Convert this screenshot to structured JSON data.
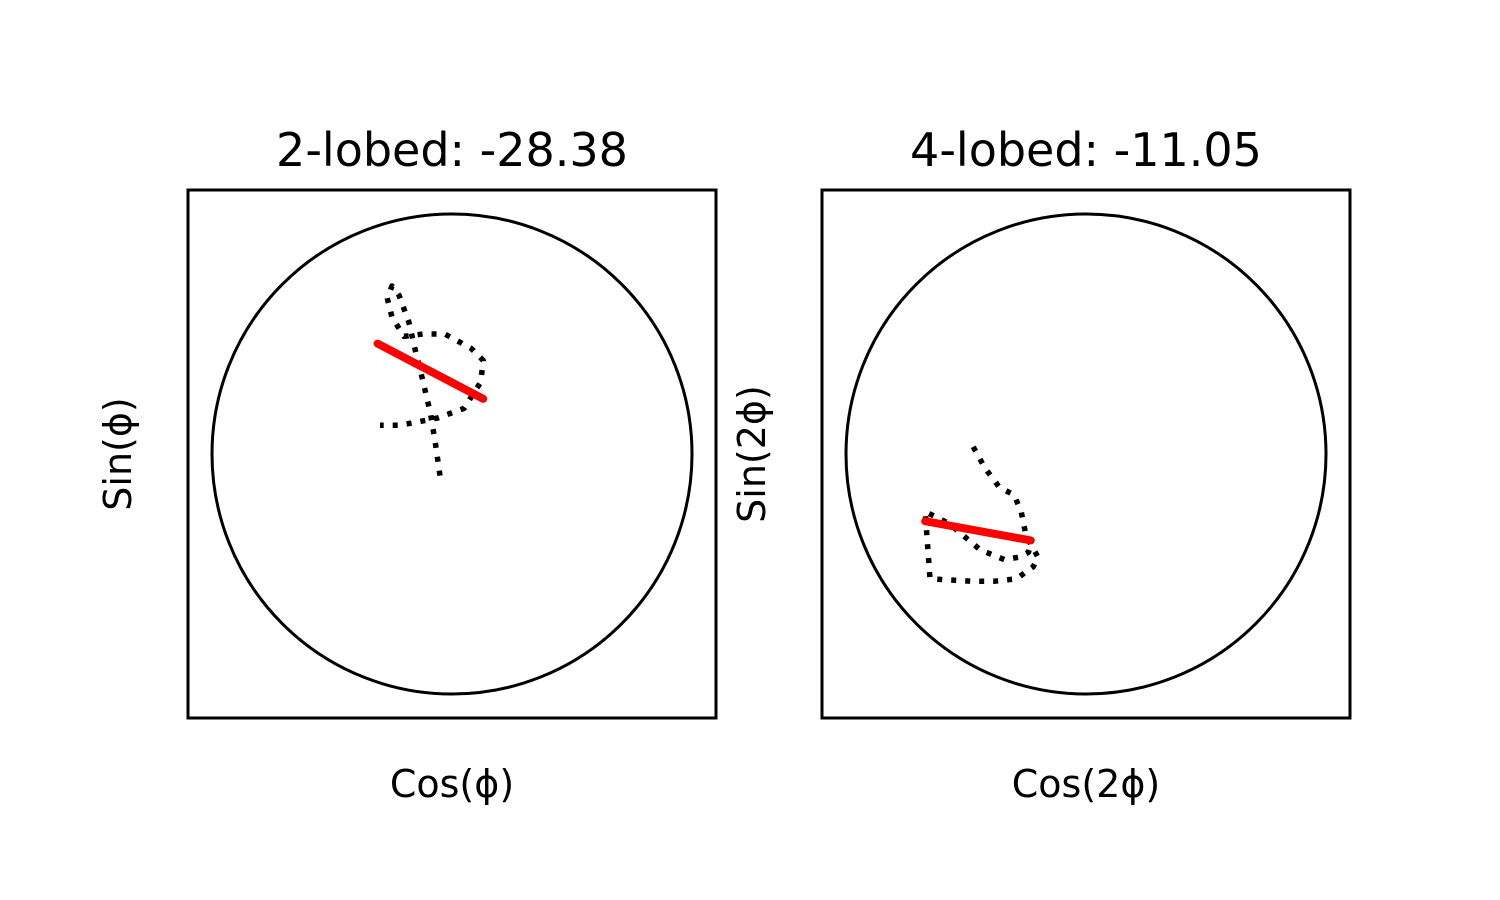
{
  "chart_data": [
    {
      "type": "line",
      "title": "2-lobed: -28.38",
      "xlabel": "Cos(ϕ)",
      "ylabel": "Sin(ϕ)",
      "xlim": [
        -1.1,
        1.1
      ],
      "ylim": [
        -1.1,
        1.1
      ],
      "axis_ticks": false,
      "reference_circle_radius": 1.0,
      "series": [
        {
          "style": "dotted",
          "color": "#000000",
          "x": [
            -0.05,
            -0.07,
            -0.09,
            -0.12,
            -0.15,
            -0.18,
            -0.22,
            -0.25,
            -0.27,
            -0.25,
            -0.2,
            -0.12,
            -0.03,
            0.08,
            0.13,
            0.12,
            0.05,
            -0.06,
            -0.16,
            -0.22,
            -0.3
          ],
          "y": [
            -0.09,
            0.05,
            0.17,
            0.3,
            0.42,
            0.55,
            0.66,
            0.7,
            0.65,
            0.57,
            0.49,
            0.5,
            0.5,
            0.44,
            0.39,
            0.3,
            0.19,
            0.15,
            0.13,
            0.12,
            0.12
          ]
        },
        {
          "style": "solid",
          "color": "#ff0000",
          "x": [
            -0.31,
            0.13
          ],
          "y": [
            0.46,
            0.23
          ]
        }
      ]
    },
    {
      "type": "line",
      "title": "4-lobed: -11.05",
      "xlabel": "Cos(2ϕ)",
      "ylabel": "Sin(2ϕ)",
      "xlim": [
        -1.1,
        1.1
      ],
      "ylim": [
        -1.1,
        1.1
      ],
      "axis_ticks": false,
      "reference_circle_radius": 1.0,
      "series": [
        {
          "style": "dotted",
          "color": "#000000",
          "x": [
            -0.47,
            -0.42,
            -0.36,
            -0.3,
            -0.27,
            -0.25,
            -0.2,
            -0.22,
            -0.29,
            -0.38,
            -0.48,
            -0.65,
            -0.67,
            -0.57,
            -0.44,
            -0.34,
            -0.28,
            -0.24,
            -0.23
          ],
          "y": [
            0.03,
            -0.06,
            -0.14,
            -0.17,
            -0.24,
            -0.34,
            -0.43,
            -0.47,
            -0.52,
            -0.53,
            -0.53,
            -0.52,
            -0.24,
            -0.29,
            -0.4,
            -0.44,
            -0.43,
            -0.41,
            -0.38
          ]
        },
        {
          "style": "solid",
          "color": "#ff0000",
          "x": [
            -0.67,
            -0.23
          ],
          "y": [
            -0.28,
            -0.36
          ]
        }
      ]
    }
  ]
}
